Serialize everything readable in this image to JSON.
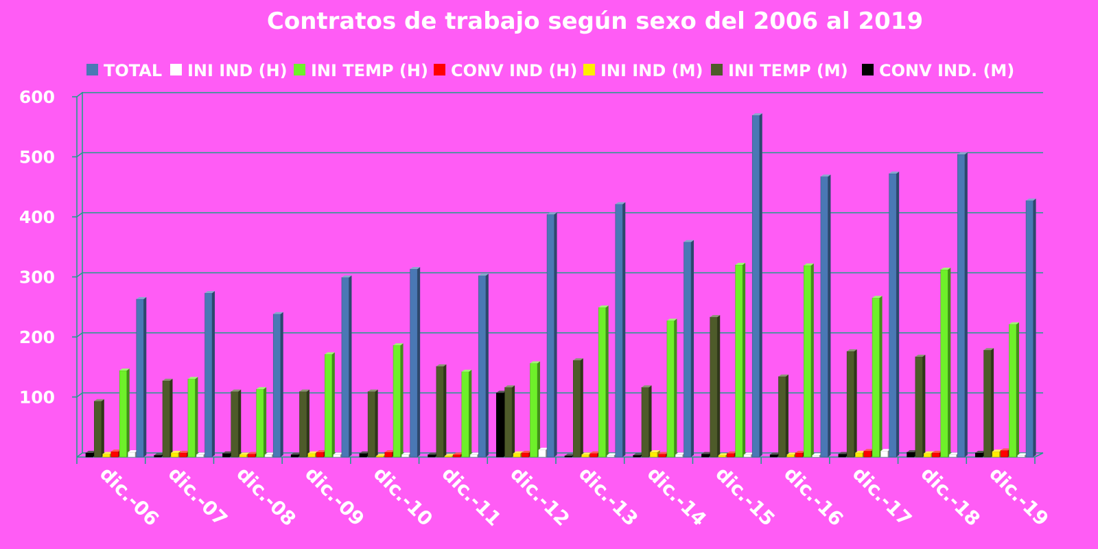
{
  "chart_data": {
    "type": "bar",
    "title": "Contratos de trabajo según sexo del 2006 al 2019",
    "categories": [
      "dic.-06",
      "dic.-07",
      "dic.-08",
      "dic.-09",
      "dic.-10",
      "dic.-11",
      "dic.-12",
      "dic.-13",
      "dic.-14",
      "dic.-15",
      "dic.-16",
      "dic.-17",
      "dic.-18",
      "dic.-19"
    ],
    "ylim": [
      0,
      600
    ],
    "yticks": [
      100,
      200,
      300,
      400,
      500,
      600
    ],
    "grid": true,
    "legend_position": "top",
    "series": [
      {
        "name": "TOTAL",
        "color": "#4a78b5",
        "values": [
          263,
          273,
          238,
          299,
          313,
          302,
          404,
          421,
          358,
          569,
          467,
          472,
          504,
          427
        ]
      },
      {
        "name": "INI IND (H)",
        "color": "#ffffff",
        "values": [
          8,
          4,
          4,
          4,
          4,
          4,
          12,
          3,
          4,
          4,
          3,
          10,
          4,
          3
        ]
      },
      {
        "name": "INI TEMP (H)",
        "color": "#6ef02a",
        "values": [
          144,
          130,
          113,
          171,
          186,
          142,
          156,
          249,
          227,
          320,
          319,
          265,
          312,
          221
        ]
      },
      {
        "name": "CONV IND (H)",
        "color": "#ff0000",
        "values": [
          9,
          7,
          5,
          8,
          8,
          4,
          7,
          6,
          5,
          6,
          7,
          10,
          7,
          11
        ]
      },
      {
        "name": "INI IND (M)",
        "color": "#ffee00",
        "values": [
          5,
          7,
          4,
          6,
          2,
          2,
          6,
          4,
          8,
          3,
          4,
          7,
          6,
          9
        ]
      },
      {
        "name": "INI TEMP  (M)",
        "color": "#4e5b2a",
        "values": [
          93,
          127,
          109,
          109,
          109,
          151,
          116,
          161,
          116,
          233,
          134,
          176,
          167,
          178
        ]
      },
      {
        "name": "CONV IND.  (M)",
        "color": "#000000",
        "values": [
          7,
          3,
          6,
          4,
          6,
          4,
          107,
          2,
          3,
          5,
          4,
          5,
          8,
          7
        ]
      }
    ]
  }
}
